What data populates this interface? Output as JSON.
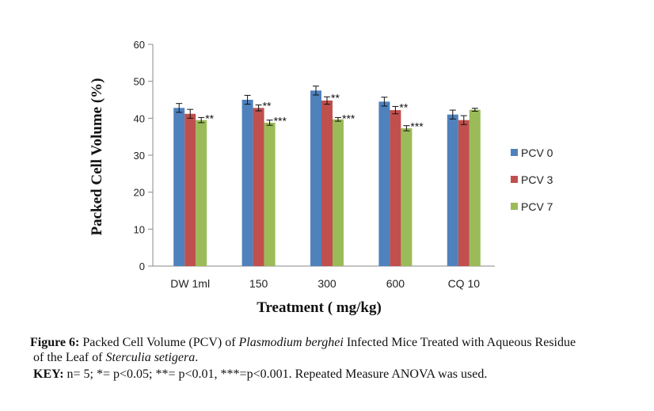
{
  "chart_data": {
    "type": "bar",
    "title": "",
    "xlabel": "Treatment ( mg/kg)",
    "ylabel": "Packed Cell Volume (%)",
    "ylim": [
      0,
      60
    ],
    "yticks": [
      "0",
      "10",
      "20",
      "30",
      "40",
      "50",
      "60"
    ],
    "categories": [
      "DW 1ml",
      "150",
      "300",
      "600",
      "CQ 10"
    ],
    "series": [
      {
        "name": "PCV 0",
        "color": "#4f81bd",
        "values": [
          42.8,
          45.0,
          47.5,
          44.5,
          41.0
        ],
        "errors": [
          1.2,
          1.2,
          1.2,
          1.2,
          1.2
        ],
        "annotations": [
          "",
          "",
          "",
          "",
          ""
        ]
      },
      {
        "name": "PCV 3",
        "color": "#c0504d",
        "values": [
          41.2,
          42.8,
          44.8,
          42.2,
          39.5
        ],
        "errors": [
          1.2,
          0.8,
          1.0,
          1.0,
          1.2
        ],
        "annotations": [
          "",
          "**",
          "**",
          "**",
          ""
        ]
      },
      {
        "name": "PCV 7",
        "color": "#9bbb59",
        "values": [
          39.5,
          38.8,
          39.7,
          37.3,
          42.3
        ],
        "errors": [
          0.7,
          0.7,
          0.5,
          0.7,
          0.4
        ],
        "annotations": [
          "**",
          "***",
          "***",
          "***",
          ""
        ]
      }
    ],
    "legend_position": "right",
    "grid": false
  },
  "caption": {
    "figure_label": "Figure 6:",
    "text_part1": " Packed Cell Volume (PCV) of ",
    "italic1": "Plasmodium berghei",
    "text_part2": " Infected Mice Treated with Aqueous Residue",
    "text_line2a": "of the Leaf of ",
    "italic2": "Sterculia setigera",
    "text_line2b": ".",
    "key_label": "KEY:",
    "key_text": " n= 5; *= p<0.05; **= p<0.01,  ***=p<0.001. Repeated Measure ANOVA was used."
  }
}
